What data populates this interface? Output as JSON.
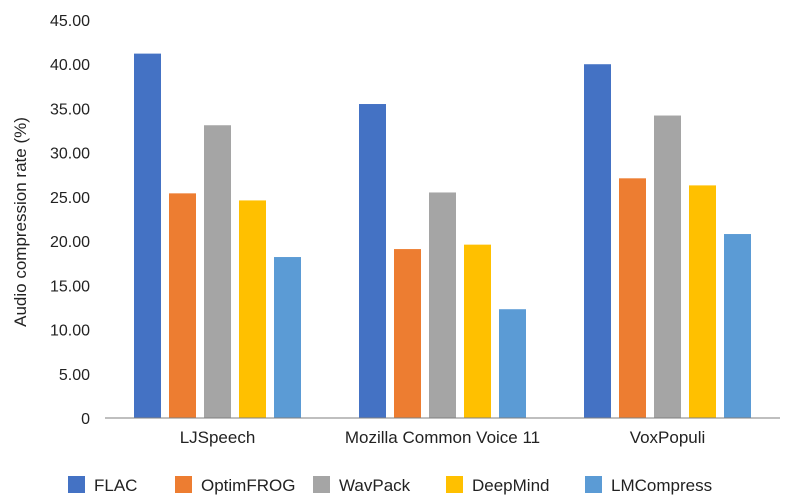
{
  "chart_data": {
    "type": "bar",
    "title": "",
    "xlabel": "",
    "ylabel": "Audio compression rate (%)",
    "ylim": [
      0,
      45
    ],
    "yticks": [
      "0",
      "5.00",
      "10.00",
      "15.00",
      "20.00",
      "25.00",
      "30.00",
      "35.00",
      "40.00",
      "45.00"
    ],
    "grid": false,
    "legend_position": "bottom",
    "categories": [
      "LJSpeech",
      "Mozilla Common Voice 11",
      "VoxPopuli"
    ],
    "series": [
      {
        "name": "FLAC",
        "color": "#4472C4",
        "values": [
          41.2,
          35.5,
          40.0
        ]
      },
      {
        "name": "OptimFROG",
        "color": "#ED7D31",
        "values": [
          25.4,
          19.1,
          27.1
        ]
      },
      {
        "name": "WavPack",
        "color": "#A5A5A5",
        "values": [
          33.1,
          25.5,
          34.2
        ]
      },
      {
        "name": "DeepMind",
        "color": "#FFC000",
        "values": [
          24.6,
          19.6,
          26.3
        ]
      },
      {
        "name": "LMCompress",
        "color": "#5B9BD5",
        "values": [
          18.2,
          12.3,
          20.8
        ]
      }
    ]
  }
}
